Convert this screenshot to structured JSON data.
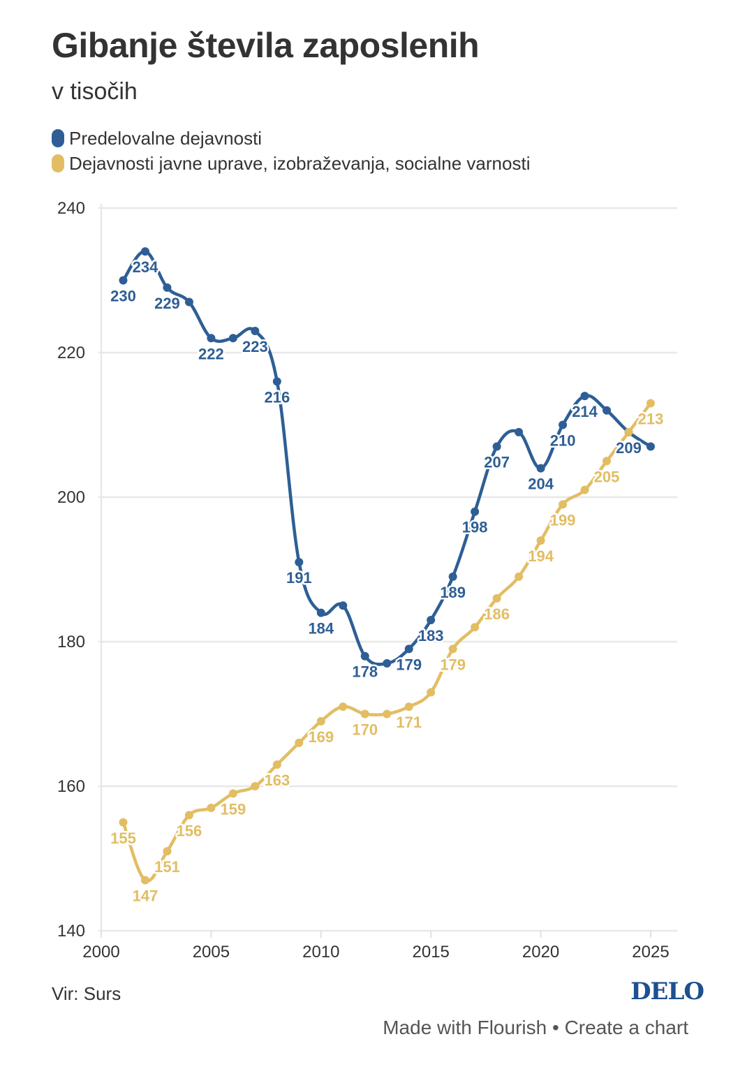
{
  "header": {
    "title": "Gibanje števila zaposlenih",
    "subtitle": "v tisočih"
  },
  "legend": [
    {
      "label": "Predelovalne dejavnosti",
      "color": "#2e5e95"
    },
    {
      "label": "Dejavnosti javne uprave, izobraževanja, socialne varnosti",
      "color": "#e2bd63"
    }
  ],
  "footer": {
    "source": "Vir: Surs",
    "brand": "DELO",
    "made_with": "Made with Flourish",
    "separator": "•",
    "create_chart": "Create a chart"
  },
  "chart_data": {
    "type": "line",
    "title": "Gibanje števila zaposlenih",
    "subtitle": "v tisočih",
    "xlabel": "",
    "ylabel": "",
    "x": [
      2001,
      2002,
      2003,
      2004,
      2005,
      2006,
      2007,
      2008,
      2009,
      2010,
      2011,
      2012,
      2013,
      2014,
      2015,
      2016,
      2017,
      2018,
      2019,
      2020,
      2021,
      2022,
      2023,
      2024,
      2025
    ],
    "xlim": [
      2000,
      2026
    ],
    "ylim": [
      140,
      240
    ],
    "x_ticks": [
      2000,
      2005,
      2010,
      2015,
      2020,
      2025
    ],
    "y_ticks": [
      140,
      160,
      180,
      200,
      220,
      240
    ],
    "grid": true,
    "legend_position": "top-left",
    "series": [
      {
        "name": "Predelovalne dejavnosti",
        "color": "#2e5e95",
        "values": [
          230,
          234,
          229,
          227,
          222,
          222,
          223,
          216,
          191,
          184,
          185,
          178,
          177,
          179,
          183,
          189,
          198,
          207,
          209,
          204,
          210,
          214,
          212,
          209,
          207
        ],
        "labels": [
          "230",
          "234",
          "229",
          null,
          "222",
          null,
          "223",
          "216",
          "191",
          "184",
          null,
          "178",
          null,
          "179",
          "183",
          "189",
          "198",
          "207",
          null,
          "204",
          "210",
          "214",
          null,
          "209",
          null
        ]
      },
      {
        "name": "Dejavnosti javne uprave, izobraževanja, socialne varnosti",
        "color": "#e2bd63",
        "values": [
          155,
          147,
          151,
          156,
          157,
          159,
          160,
          163,
          166,
          169,
          171,
          170,
          170,
          171,
          173,
          179,
          182,
          186,
          189,
          194,
          199,
          201,
          205,
          209,
          213
        ],
        "labels": [
          "155",
          "147",
          "151",
          "156",
          null,
          "159",
          null,
          "163",
          null,
          "169",
          null,
          "170",
          null,
          "171",
          null,
          "179",
          null,
          "186",
          null,
          "194",
          "199",
          null,
          "205",
          null,
          "213"
        ]
      }
    ]
  }
}
